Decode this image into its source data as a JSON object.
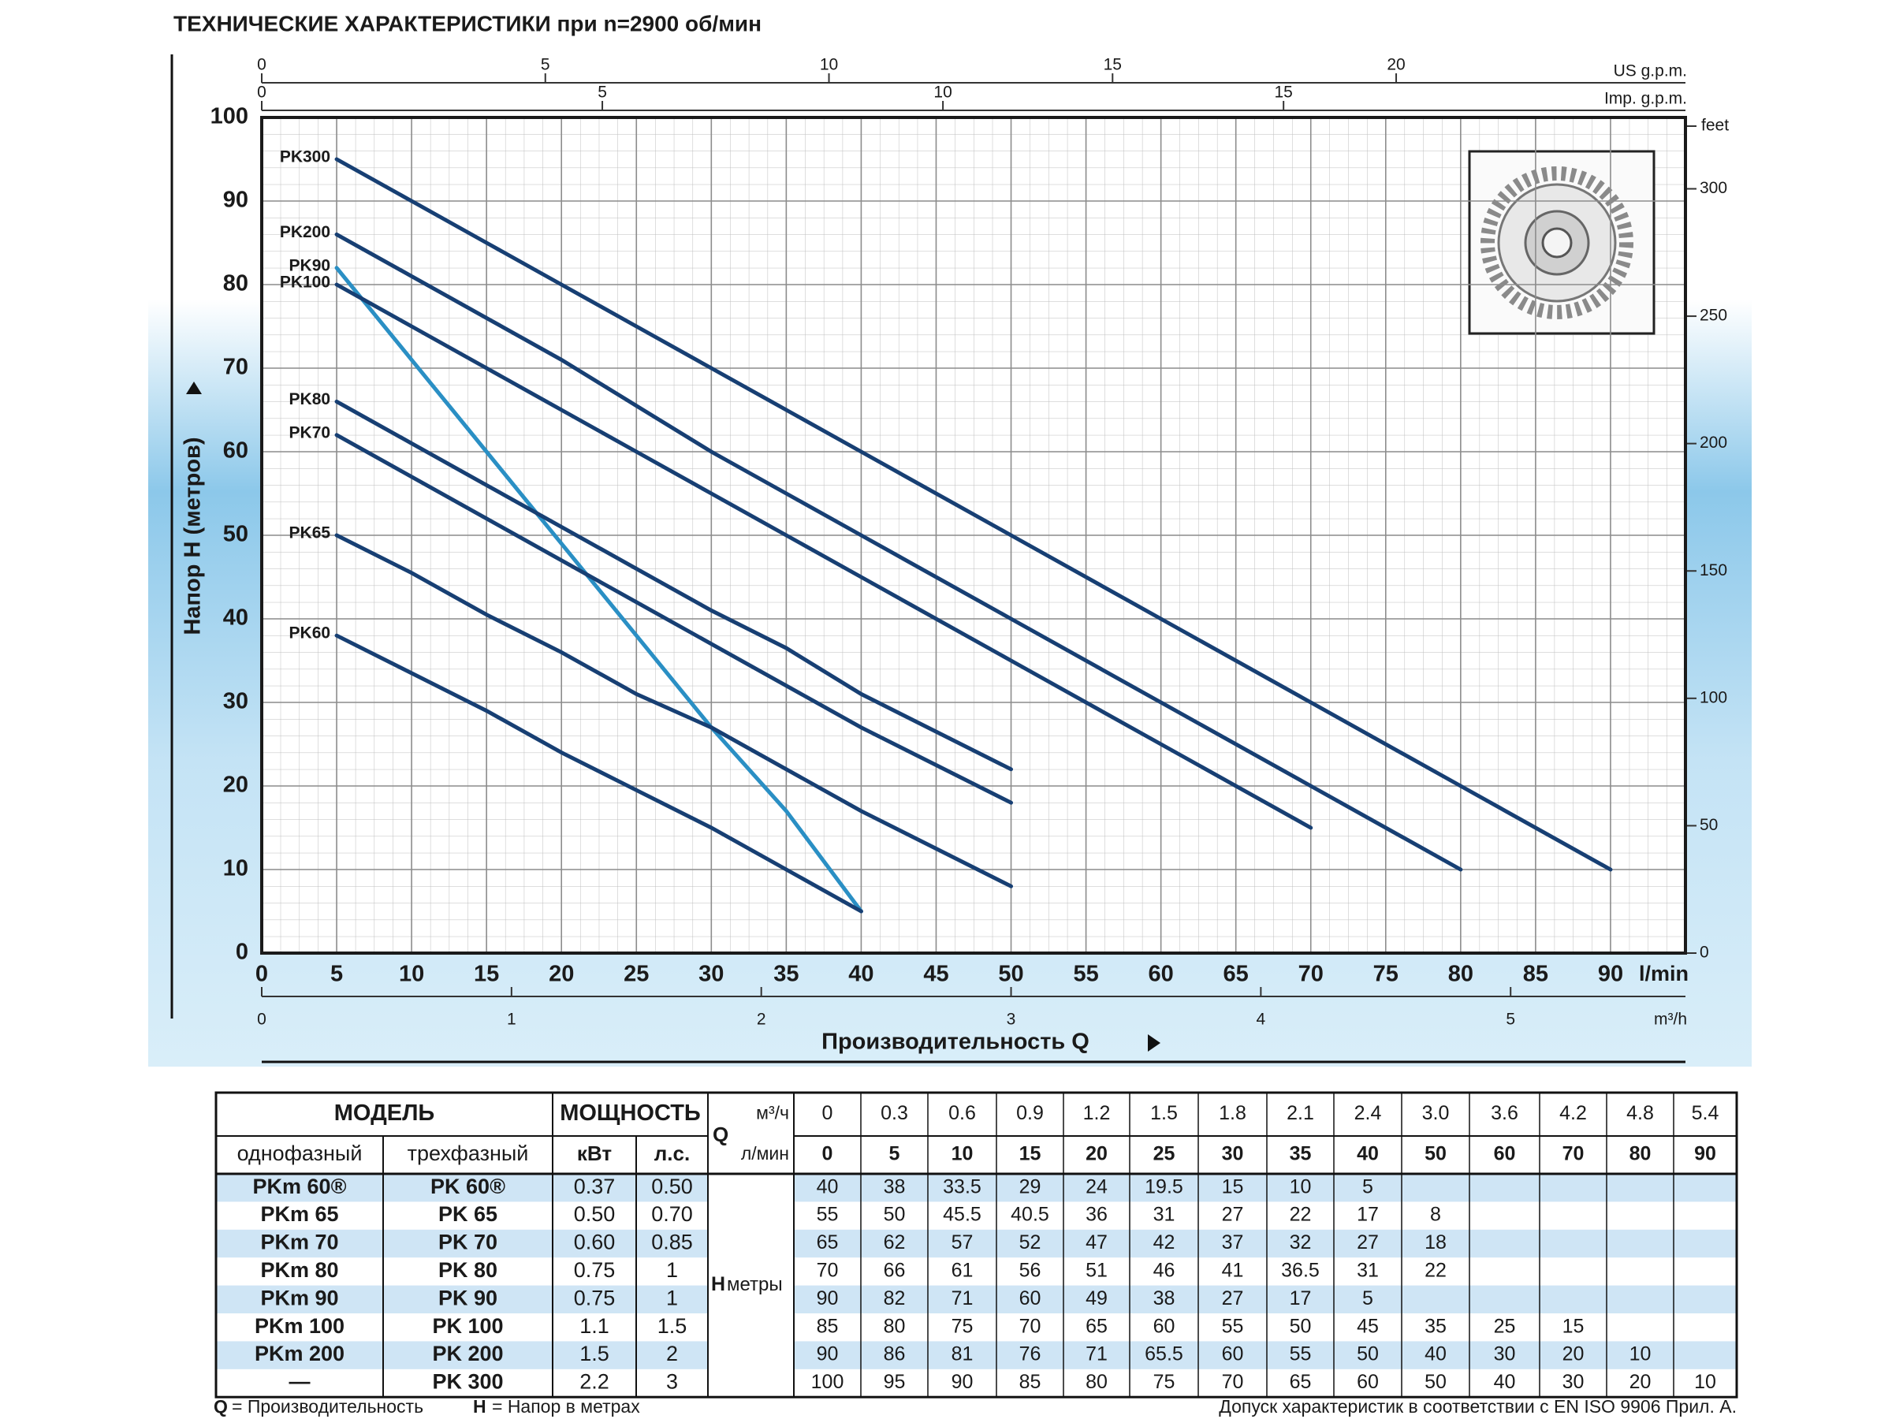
{
  "chart_data": {
    "type": "line",
    "title": "ТЕХНИЧЕСКИЕ ХАРАКТЕРИСТИКИ при n=2900 об/мин",
    "xlabel": "Производительность Q",
    "x_unit": "l/min",
    "ylabel": "Напор H  (метров)",
    "y2_label": "feet",
    "x": [
      5,
      10,
      15,
      20,
      25,
      30,
      35,
      40,
      50,
      60,
      70,
      80,
      90
    ],
    "xlim": [
      0,
      95
    ],
    "xticks": [
      0,
      5,
      10,
      15,
      20,
      25,
      30,
      35,
      40,
      45,
      50,
      55,
      60,
      65,
      70,
      75,
      80,
      85,
      90
    ],
    "ylim": [
      0,
      100
    ],
    "yticks": [
      0,
      10,
      20,
      30,
      40,
      50,
      60,
      70,
      80,
      90,
      100
    ],
    "y2lim": [
      0,
      328
    ],
    "y2ticks": [
      0,
      50,
      100,
      150,
      200,
      250,
      300
    ],
    "x_axes": [
      {
        "label": "m³/h",
        "position": "bottom",
        "lim": [
          0,
          5.7
        ],
        "ticks": [
          0,
          1,
          2,
          3,
          4,
          5
        ]
      },
      {
        "label": "US g.p.m.",
        "position": "top",
        "lim": [
          0,
          25.1
        ],
        "ticks": [
          0,
          5,
          10,
          15,
          20
        ]
      },
      {
        "label": "Imp. g.p.m.",
        "position": "top",
        "lim": [
          0,
          20.9
        ],
        "ticks": [
          0,
          5,
          10,
          15
        ]
      }
    ],
    "grid": true,
    "series": [
      {
        "name": "PK300",
        "color": "#173f73",
        "values": [
          95,
          90,
          85,
          80,
          75,
          70,
          65,
          60,
          50,
          40,
          30,
          20,
          10
        ]
      },
      {
        "name": "PK200",
        "color": "#173f73",
        "values": [
          86,
          81,
          76,
          71,
          65.5,
          60,
          55,
          50,
          40,
          30,
          20,
          10,
          null
        ]
      },
      {
        "name": "PK90",
        "color": "#2a8fc4",
        "values": [
          82,
          71,
          60,
          49,
          38,
          27,
          17,
          5,
          null,
          null,
          null,
          null,
          null
        ]
      },
      {
        "name": "PK100",
        "color": "#173f73",
        "values": [
          80,
          75,
          70,
          65,
          60,
          55,
          50,
          45,
          35,
          25,
          15,
          null,
          null
        ]
      },
      {
        "name": "PK80",
        "color": "#173f73",
        "values": [
          66,
          61,
          56,
          51,
          46,
          41,
          36.5,
          31,
          22,
          null,
          null,
          null,
          null
        ]
      },
      {
        "name": "PK70",
        "color": "#173f73",
        "values": [
          62,
          57,
          52,
          47,
          42,
          37,
          32,
          27,
          18,
          null,
          null,
          null,
          null
        ]
      },
      {
        "name": "PK65",
        "color": "#173f73",
        "values": [
          50,
          45.5,
          40.5,
          36,
          31,
          27,
          22,
          17,
          8,
          null,
          null,
          null,
          null
        ]
      },
      {
        "name": "PK60",
        "color": "#173f73",
        "values": [
          38,
          33.5,
          29,
          24,
          19.5,
          15,
          10,
          5,
          null,
          null,
          null,
          null,
          null
        ]
      }
    ]
  },
  "table": {
    "header": {
      "model": "МОДЕЛЬ",
      "power": "МОЩНОСТЬ",
      "single_phase": "однофазный",
      "three_phase": "трехфазный",
      "kw": "кВт",
      "hp": "л.с.",
      "q_symbol": "Q",
      "q_m3h": "м³/ч",
      "q_lmin": "л/мин",
      "h_symbol": "H",
      "h_unit": "метры"
    },
    "q_m3h": [
      "0",
      "0.3",
      "0.6",
      "0.9",
      "1.2",
      "1.5",
      "1.8",
      "2.1",
      "2.4",
      "3.0",
      "3.6",
      "4.2",
      "4.8",
      "5.4"
    ],
    "q_lmin": [
      "0",
      "5",
      "10",
      "15",
      "20",
      "25",
      "30",
      "35",
      "40",
      "50",
      "60",
      "70",
      "80",
      "90"
    ],
    "rows": [
      {
        "single": "PKm 60®",
        "three": "PK 60®",
        "kw": "0.37",
        "hp": "0.50",
        "h": [
          "40",
          "38",
          "33.5",
          "29",
          "24",
          "19.5",
          "15",
          "10",
          "5"
        ]
      },
      {
        "single": "PKm 65",
        "three": "PK 65",
        "kw": "0.50",
        "hp": "0.70",
        "h": [
          "55",
          "50",
          "45.5",
          "40.5",
          "36",
          "31",
          "27",
          "22",
          "17",
          "8"
        ]
      },
      {
        "single": "PKm 70",
        "three": "PK 70",
        "kw": "0.60",
        "hp": "0.85",
        "h": [
          "65",
          "62",
          "57",
          "52",
          "47",
          "42",
          "37",
          "32",
          "27",
          "18"
        ]
      },
      {
        "single": "PKm 80",
        "three": "PK 80",
        "kw": "0.75",
        "hp": "1",
        "h": [
          "70",
          "66",
          "61",
          "56",
          "51",
          "46",
          "41",
          "36.5",
          "31",
          "22"
        ]
      },
      {
        "single": "PKm 90",
        "three": "PK 90",
        "kw": "0.75",
        "hp": "1",
        "h": [
          "90",
          "82",
          "71",
          "60",
          "49",
          "38",
          "27",
          "17",
          "5"
        ]
      },
      {
        "single": "PKm 100",
        "three": "PK 100",
        "kw": "1.1",
        "hp": "1.5",
        "h": [
          "85",
          "80",
          "75",
          "70",
          "65",
          "60",
          "55",
          "50",
          "45",
          "35",
          "25",
          "15"
        ]
      },
      {
        "single": "PKm 200",
        "three": "PK 200",
        "kw": "1.5",
        "hp": "2",
        "h": [
          "90",
          "86",
          "81",
          "76",
          "71",
          "65.5",
          "60",
          "55",
          "50",
          "40",
          "30",
          "20",
          "10"
        ]
      },
      {
        "single": "—",
        "three": "PK 300",
        "kw": "2.2",
        "hp": "3",
        "h": [
          "100",
          "95",
          "90",
          "85",
          "80",
          "75",
          "70",
          "65",
          "60",
          "50",
          "40",
          "30",
          "20",
          "10"
        ]
      }
    ]
  },
  "footer": {
    "q_symbol": "Q",
    "q_text": "= Производительность",
    "h_symbol": "H",
    "h_text": "= Напор в метрах",
    "note": "Допуск характеристик в соответствии с EN ISO 9906 Прил. А."
  }
}
